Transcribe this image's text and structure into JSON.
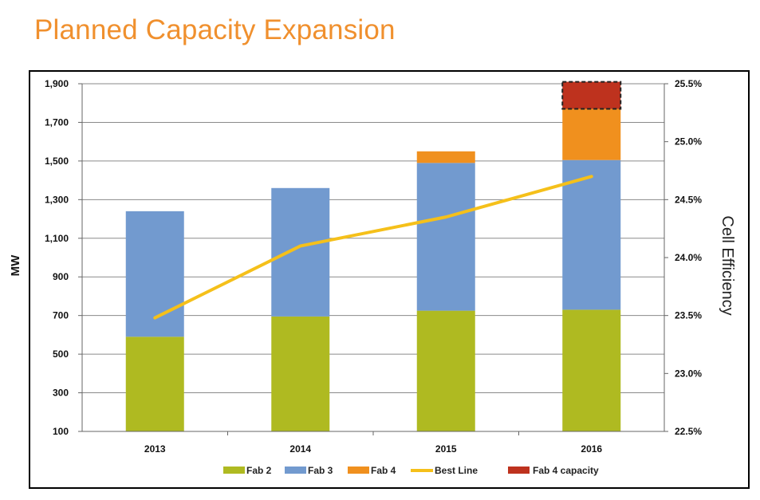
{
  "page": {
    "title": "Planned Capacity Expansion"
  },
  "colors": {
    "title": "#F0902E",
    "fab2": "#AFBA21",
    "fab3": "#729ACF",
    "fab4": "#F0901E",
    "fab4_capacity": "#BE321E",
    "best_line": "#F5C01A"
  },
  "chart_data": {
    "type": "bar",
    "stacked": true,
    "title": "Planned Capacity Expansion",
    "categories": [
      "2013",
      "2014",
      "2015",
      "2016"
    ],
    "series": [
      {
        "name": "Fab 2",
        "values": [
          490,
          595,
          625,
          630
        ]
      },
      {
        "name": "Fab 3",
        "values": [
          650,
          665,
          765,
          775
        ]
      },
      {
        "name": "Fab 4",
        "values": [
          0,
          0,
          60,
          265
        ]
      },
      {
        "name": "Fab 4 capacity",
        "values": [
          0,
          0,
          0,
          140
        ]
      }
    ],
    "line_series": {
      "name": "Best Line",
      "axis": "right",
      "values": [
        23.48,
        24.1,
        24.35,
        24.7
      ]
    },
    "ylabel": "MW",
    "ylim": [
      100,
      1900
    ],
    "yticks": [
      "1,900",
      "1,700",
      "1,500",
      "1,300",
      "1,100",
      "900",
      "700",
      "500",
      "300",
      "100"
    ],
    "y2label": "Cell Efficiency",
    "y2lim": [
      22.5,
      25.5
    ],
    "y2ticks": [
      "25.5%",
      "25.0%",
      "24.5%",
      "24.0%",
      "23.5%",
      "23.0%",
      "22.5%"
    ],
    "grid": true,
    "legend": [
      "Fab 2",
      "Fab 3",
      "Fab 4",
      "Best Line",
      "Fab 4 capacity"
    ],
    "legend_position": "bottom"
  }
}
